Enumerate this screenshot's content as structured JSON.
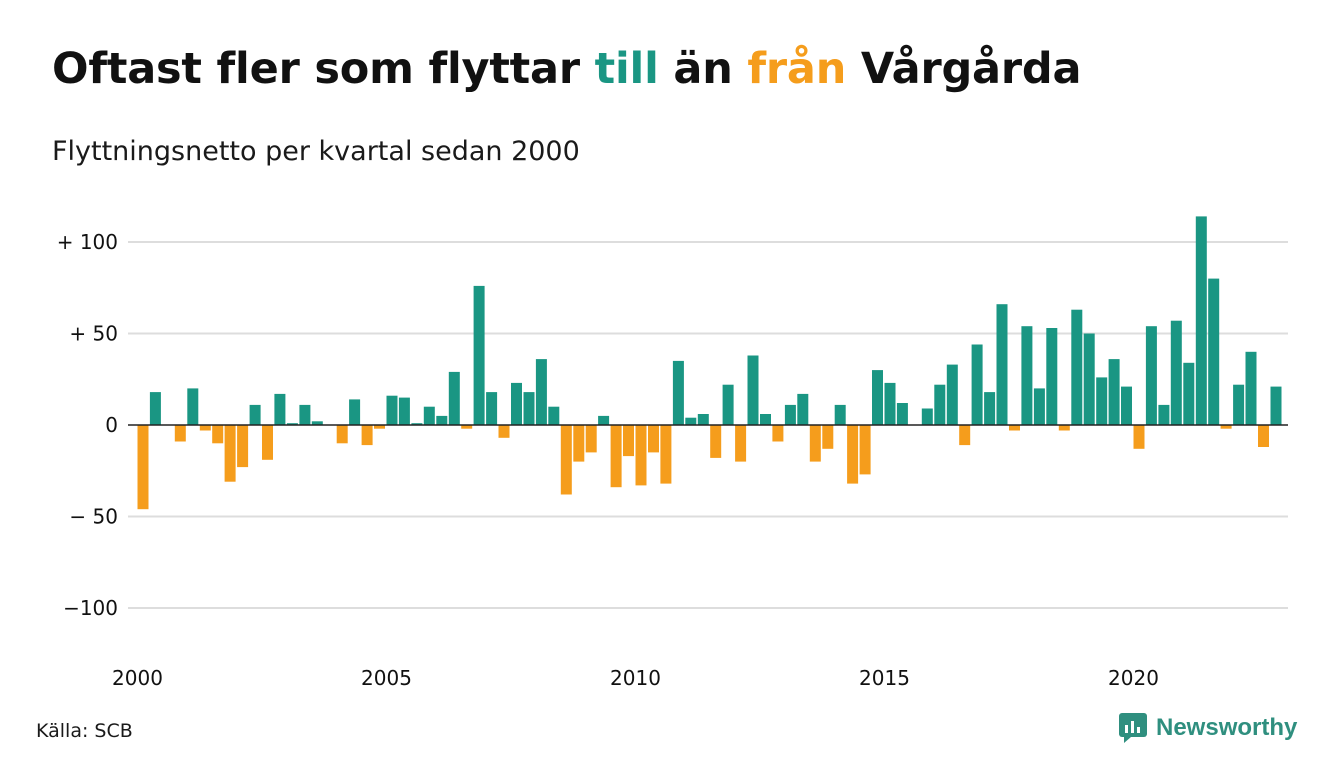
{
  "title": {
    "part1": "Oftast fler som flyttar ",
    "part2": "till",
    "part3": " än ",
    "part4": "från",
    "part5": " Vårgårda"
  },
  "subtitle": "Flyttningsnetto per kvartal sedan 2000",
  "source": "Källa: SCB",
  "brand": {
    "name": "Newsworthy",
    "icon": "newsworthy-logo-icon"
  },
  "colors": {
    "positive": "#1a9683",
    "negative": "#f59d1c",
    "grid": "#dddddd"
  },
  "chart_data": {
    "type": "bar",
    "title": "Oftast fler som flyttar till än från Vårgårda",
    "subtitle": "Flyttningsnetto per kvartal sedan 2000",
    "xlabel": "",
    "ylabel": "",
    "x_start": "2000 Q1",
    "frequency": "quarter",
    "x_ticks": [
      "2000",
      "2005",
      "2010",
      "2015",
      "2020"
    ],
    "y_ticks": [
      {
        "value": 100,
        "label": "+ 100"
      },
      {
        "value": 50,
        "label": "+  50"
      },
      {
        "value": 0,
        "label": "0"
      },
      {
        "value": -50,
        "label": "− 50"
      },
      {
        "value": -100,
        "label": "−100"
      }
    ],
    "ylim": [
      -120,
      120
    ],
    "grid": true,
    "values": [
      -46,
      18,
      0,
      -9,
      20,
      -3,
      -10,
      -31,
      -23,
      11,
      -19,
      17,
      1,
      11,
      2,
      0,
      -10,
      14,
      -11,
      -2,
      16,
      15,
      1,
      10,
      5,
      29,
      -2,
      76,
      18,
      -7,
      23,
      18,
      36,
      10,
      -38,
      -20,
      -15,
      5,
      -34,
      -17,
      -33,
      -15,
      -32,
      35,
      4,
      6,
      -18,
      22,
      -20,
      38,
      6,
      -9,
      11,
      17,
      -20,
      -13,
      11,
      -32,
      -27,
      30,
      23,
      12,
      0,
      9,
      22,
      33,
      -11,
      44,
      18,
      66,
      -3,
      54,
      20,
      53,
      -3,
      63,
      50,
      26,
      36,
      21,
      -13,
      54,
      11,
      57,
      34,
      114,
      80,
      -2,
      22,
      40,
      -12,
      21
    ]
  }
}
